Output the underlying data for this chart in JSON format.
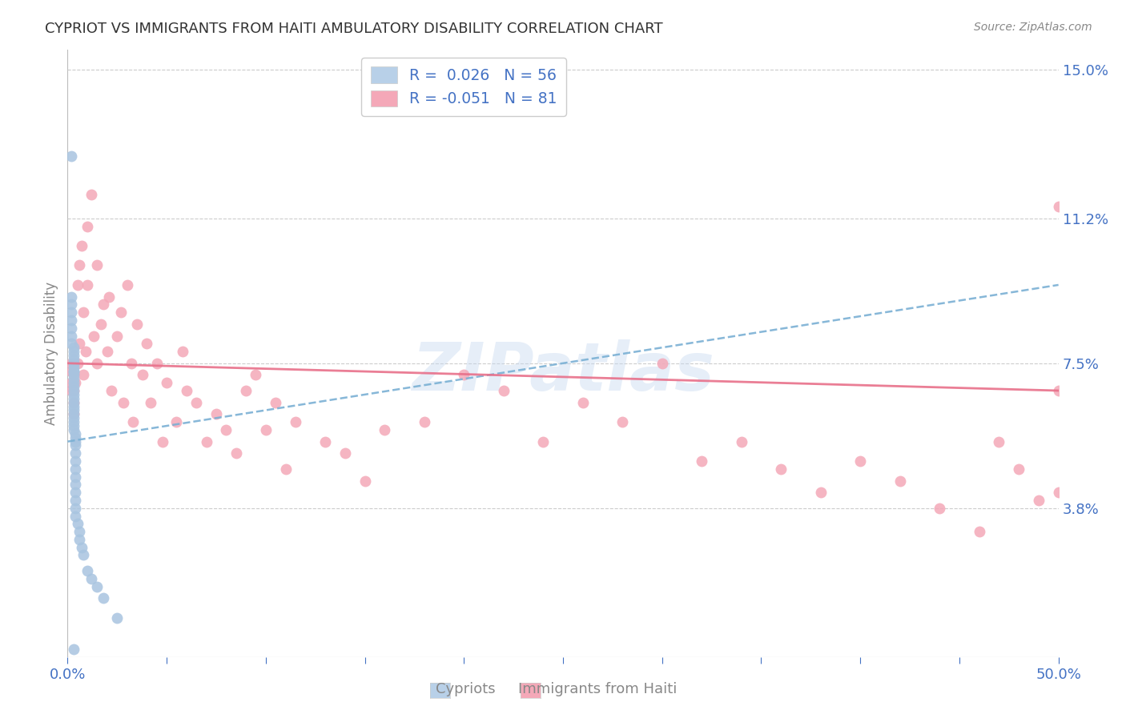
{
  "title": "CYPRIOT VS IMMIGRANTS FROM HAITI AMBULATORY DISABILITY CORRELATION CHART",
  "source": "Source: ZipAtlas.com",
  "ylabel": "Ambulatory Disability",
  "x_min": 0.0,
  "x_max": 0.5,
  "y_min": 0.0,
  "y_max": 0.155,
  "x_tick_positions": [
    0.0,
    0.05,
    0.1,
    0.15,
    0.2,
    0.25,
    0.3,
    0.35,
    0.4,
    0.45,
    0.5
  ],
  "x_tick_labels_sparse": {
    "0.0": "0.0%",
    "0.5": "50.0%"
  },
  "y_tick_vals_right": [
    0.15,
    0.112,
    0.075,
    0.038
  ],
  "y_tick_labels_right": [
    "15.0%",
    "11.2%",
    "7.5%",
    "3.8%"
  ],
  "cypriot_R": 0.026,
  "cypriot_N": 56,
  "haiti_R": -0.051,
  "haiti_N": 81,
  "cypriot_color": "#a8c4e0",
  "haiti_color": "#f4a8b8",
  "cypriot_line_color": "#7ab0d4",
  "haiti_line_color": "#e8708a",
  "text_color": "#4472c4",
  "label_color": "#888888",
  "background_color": "#ffffff",
  "grid_color": "#cccccc",
  "cypriot_trend_x0": 0.0,
  "cypriot_trend_y0": 0.055,
  "cypriot_trend_x1": 0.5,
  "cypriot_trend_y1": 0.095,
  "haiti_trend_x0": 0.0,
  "haiti_trend_y0": 0.075,
  "haiti_trend_x1": 0.5,
  "haiti_trend_y1": 0.068,
  "cypriot_x": [
    0.002,
    0.002,
    0.002,
    0.002,
    0.002,
    0.002,
    0.002,
    0.002,
    0.003,
    0.003,
    0.003,
    0.003,
    0.003,
    0.003,
    0.003,
    0.003,
    0.003,
    0.003,
    0.003,
    0.003,
    0.003,
    0.003,
    0.003,
    0.003,
    0.003,
    0.003,
    0.003,
    0.003,
    0.003,
    0.003,
    0.003,
    0.003,
    0.004,
    0.004,
    0.004,
    0.004,
    0.004,
    0.004,
    0.004,
    0.004,
    0.004,
    0.004,
    0.004,
    0.004,
    0.004,
    0.005,
    0.006,
    0.006,
    0.007,
    0.008,
    0.01,
    0.012,
    0.015,
    0.018,
    0.025,
    0.003
  ],
  "cypriot_y": [
    0.128,
    0.092,
    0.09,
    0.088,
    0.086,
    0.084,
    0.082,
    0.08,
    0.079,
    0.078,
    0.077,
    0.076,
    0.075,
    0.075,
    0.074,
    0.073,
    0.073,
    0.072,
    0.071,
    0.07,
    0.069,
    0.068,
    0.067,
    0.066,
    0.065,
    0.064,
    0.063,
    0.062,
    0.061,
    0.06,
    0.059,
    0.058,
    0.057,
    0.056,
    0.055,
    0.054,
    0.052,
    0.05,
    0.048,
    0.046,
    0.044,
    0.042,
    0.04,
    0.038,
    0.036,
    0.034,
    0.032,
    0.03,
    0.028,
    0.026,
    0.022,
    0.02,
    0.018,
    0.015,
    0.01,
    0.002
  ],
  "haiti_x": [
    0.002,
    0.002,
    0.002,
    0.002,
    0.003,
    0.003,
    0.003,
    0.003,
    0.003,
    0.004,
    0.005,
    0.005,
    0.006,
    0.006,
    0.007,
    0.008,
    0.008,
    0.009,
    0.01,
    0.01,
    0.012,
    0.013,
    0.015,
    0.015,
    0.017,
    0.018,
    0.02,
    0.021,
    0.022,
    0.025,
    0.027,
    0.028,
    0.03,
    0.032,
    0.033,
    0.035,
    0.038,
    0.04,
    0.042,
    0.045,
    0.048,
    0.05,
    0.055,
    0.058,
    0.06,
    0.065,
    0.07,
    0.075,
    0.08,
    0.085,
    0.09,
    0.095,
    0.1,
    0.105,
    0.11,
    0.115,
    0.13,
    0.14,
    0.15,
    0.16,
    0.18,
    0.2,
    0.22,
    0.24,
    0.26,
    0.28,
    0.3,
    0.32,
    0.34,
    0.36,
    0.38,
    0.4,
    0.42,
    0.44,
    0.46,
    0.47,
    0.48,
    0.49,
    0.5,
    0.5,
    0.5
  ],
  "haiti_y": [
    0.075,
    0.073,
    0.07,
    0.068,
    0.075,
    0.072,
    0.068,
    0.065,
    0.062,
    0.07,
    0.095,
    0.075,
    0.1,
    0.08,
    0.105,
    0.088,
    0.072,
    0.078,
    0.095,
    0.11,
    0.118,
    0.082,
    0.1,
    0.075,
    0.085,
    0.09,
    0.078,
    0.092,
    0.068,
    0.082,
    0.088,
    0.065,
    0.095,
    0.075,
    0.06,
    0.085,
    0.072,
    0.08,
    0.065,
    0.075,
    0.055,
    0.07,
    0.06,
    0.078,
    0.068,
    0.065,
    0.055,
    0.062,
    0.058,
    0.052,
    0.068,
    0.072,
    0.058,
    0.065,
    0.048,
    0.06,
    0.055,
    0.052,
    0.045,
    0.058,
    0.06,
    0.072,
    0.068,
    0.055,
    0.065,
    0.06,
    0.075,
    0.05,
    0.055,
    0.048,
    0.042,
    0.05,
    0.045,
    0.038,
    0.032,
    0.055,
    0.048,
    0.04,
    0.042,
    0.068,
    0.115
  ]
}
